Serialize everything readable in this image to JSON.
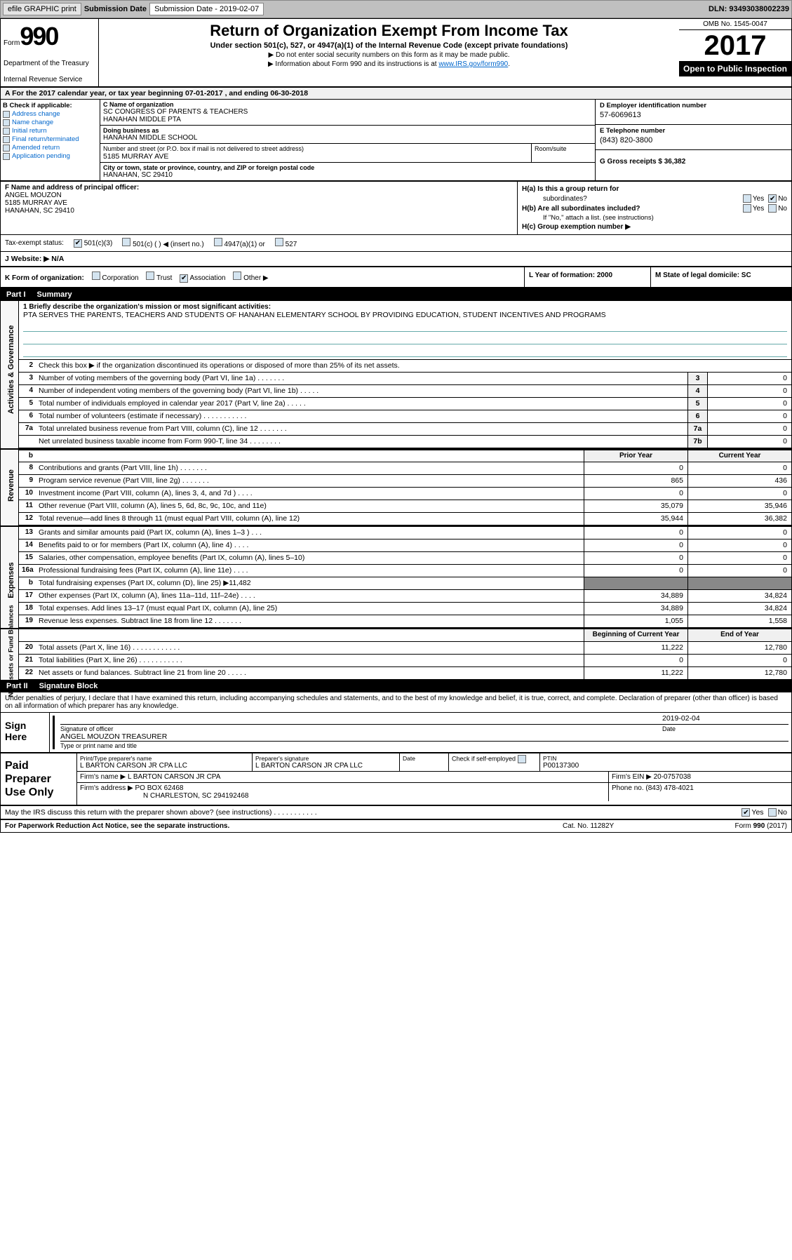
{
  "toolbar": {
    "efile_label": "efile GRAPHIC print",
    "submission_label": "Submission Date - 2019-02-07",
    "dln_label": "DLN: 93493038002239"
  },
  "header": {
    "form_prefix": "Form",
    "form_number": "990",
    "department": "Department of the Treasury",
    "irs": "Internal Revenue Service",
    "title": "Return of Organization Exempt From Income Tax",
    "subtitle": "Under section 501(c), 527, or 4947(a)(1) of the Internal Revenue Code (except private foundations)",
    "note1": "▶ Do not enter social security numbers on this form as it may be made public.",
    "note2_pre": "▶ Information about Form 990 and its instructions is at ",
    "note2_link": "www.IRS.gov/form990",
    "omb": "OMB No. 1545-0047",
    "year": "2017",
    "open_public": "Open to Public Inspection"
  },
  "period": "For the 2017 calendar year, or tax year beginning 07-01-2017    , and ending 06-30-2018",
  "section_b": {
    "header": "B Check if applicable:",
    "items": [
      "Address change",
      "Name change",
      "Initial return",
      "Final return/terminated",
      "Amended return",
      "Application pending"
    ]
  },
  "section_c": {
    "name_label": "C Name of organization",
    "name": "SC CONGRESS OF PARENTS & TEACHERS",
    "name2": "HANAHAN MIDDLE PTA",
    "dba_label": "Doing business as",
    "dba": "HANAHAN MIDDLE SCHOOL",
    "addr_label": "Number and street (or P.O. box if mail is not delivered to street address)",
    "addr": "5185 MURRAY AVE",
    "suite_label": "Room/suite",
    "city_label": "City or town, state or province, country, and ZIP or foreign postal code",
    "city": "HANAHAN, SC  29410"
  },
  "section_d": {
    "label": "D Employer identification number",
    "value": "57-6069613"
  },
  "section_e": {
    "label": "E Telephone number",
    "value": "(843) 820-3800"
  },
  "section_g": {
    "label": "G Gross receipts $ 36,382"
  },
  "section_f": {
    "label": "F  Name and address of principal officer:",
    "name": "ANGEL MOUZON",
    "addr": "5185 MURRAY AVE",
    "city": "HANAHAN, SC  29410"
  },
  "section_h": {
    "ha_label": "H(a)  Is this a group return for",
    "ha_label2": "subordinates?",
    "hb_label": "H(b)  Are all subordinates included?",
    "hb_note": "If \"No,\" attach a list. (see instructions)",
    "hc_label": "H(c)  Group exemption number ▶"
  },
  "tax_status": {
    "label": "Tax-exempt status:",
    "opt1": "501(c)(3)",
    "opt2": "501(c) (  ) ◀ (insert no.)",
    "opt3": "4947(a)(1) or",
    "opt4": "527"
  },
  "section_j": {
    "label": "J   Website: ▶",
    "value": "N/A"
  },
  "section_k": {
    "label": "K Form of organization:",
    "opts": [
      "Corporation",
      "Trust",
      "Association",
      "Other ▶"
    ]
  },
  "section_l": {
    "label": "L Year of formation: 2000"
  },
  "section_m": {
    "label": "M State of legal domicile: SC"
  },
  "part1": {
    "header_num": "Part I",
    "header_title": "Summary",
    "line1_label": "1  Briefly describe the organization's mission or most significant activities:",
    "mission": "PTA SERVES THE PARENTS, TEACHERS AND STUDENTS OF HANAHAN ELEMENTARY SCHOOL BY PROVIDING EDUCATION, STUDENT INCENTIVES AND PROGRAMS",
    "line2": "Check this box ▶        if the organization discontinued its operations or disposed of more than 25% of its net assets.",
    "sides": {
      "governance": "Activities & Governance",
      "revenue": "Revenue",
      "expenses": "Expenses",
      "netassets": "Net Assets or Fund Balances"
    },
    "col_prior": "Prior Year",
    "col_current": "Current Year",
    "col_begin": "Beginning of Current Year",
    "col_end": "End of Year",
    "lines_gov": [
      {
        "num": "3",
        "text": "Number of voting members of the governing body (Part VI, line 1a)   .   .   .   .   .   .   .",
        "box": "3",
        "val": "0"
      },
      {
        "num": "4",
        "text": "Number of independent voting members of the governing body (Part VI, line 1b)   .   .   .   .   .",
        "box": "4",
        "val": "0"
      },
      {
        "num": "5",
        "text": "Total number of individuals employed in calendar year 2017 (Part V, line 2a)   .   .   .   .   .",
        "box": "5",
        "val": "0"
      },
      {
        "num": "6",
        "text": "Total number of volunteers (estimate if necessary)   .   .   .   .   .   .   .   .   .   .   .",
        "box": "6",
        "val": "0"
      },
      {
        "num": "7a",
        "text": "Total unrelated business revenue from Part VIII, column (C), line 12   .   .   .   .   .   .   .",
        "box": "7a",
        "val": "0"
      },
      {
        "num": "",
        "text": "Net unrelated business taxable income from Form 990-T, line 34   .   .   .   .   .   .   .   .",
        "box": "7b",
        "val": "0"
      }
    ],
    "lines_rev": [
      {
        "num": "8",
        "text": "Contributions and grants (Part VIII, line 1h)   .   .   .   .   .   .   .",
        "prior": "0",
        "curr": "0"
      },
      {
        "num": "9",
        "text": "Program service revenue (Part VIII, line 2g)   .   .   .   .   .   .   .",
        "prior": "865",
        "curr": "436"
      },
      {
        "num": "10",
        "text": "Investment income (Part VIII, column (A), lines 3, 4, and 7d )   .   .   .   .",
        "prior": "0",
        "curr": "0"
      },
      {
        "num": "11",
        "text": "Other revenue (Part VIII, column (A), lines 5, 6d, 8c, 9c, 10c, and 11e)",
        "prior": "35,079",
        "curr": "35,946"
      },
      {
        "num": "12",
        "text": "Total revenue—add lines 8 through 11 (must equal Part VIII, column (A), line 12)",
        "prior": "35,944",
        "curr": "36,382"
      }
    ],
    "lines_exp": [
      {
        "num": "13",
        "text": "Grants and similar amounts paid (Part IX, column (A), lines 1–3 )   .   .   .",
        "prior": "0",
        "curr": "0"
      },
      {
        "num": "14",
        "text": "Benefits paid to or for members (Part IX, column (A), line 4)   .   .   .   .",
        "prior": "0",
        "curr": "0"
      },
      {
        "num": "15",
        "text": "Salaries, other compensation, employee benefits (Part IX, column (A), lines 5–10)",
        "prior": "0",
        "curr": "0"
      },
      {
        "num": "16a",
        "text": "Professional fundraising fees (Part IX, column (A), line 11e)   .   .   .   .",
        "prior": "0",
        "curr": "0"
      },
      {
        "num": "b",
        "text": "Total fundraising expenses (Part IX, column (D), line 25) ▶11,482",
        "prior": "",
        "curr": "",
        "dark": true
      },
      {
        "num": "17",
        "text": "Other expenses (Part IX, column (A), lines 11a–11d, 11f–24e)   .   .   .   .",
        "prior": "34,889",
        "curr": "34,824"
      },
      {
        "num": "18",
        "text": "Total expenses. Add lines 13–17 (must equal Part IX, column (A), line 25)",
        "prior": "34,889",
        "curr": "34,824"
      },
      {
        "num": "19",
        "text": "Revenue less expenses. Subtract line 18 from line 12   .   .   .   .   .   .   .",
        "prior": "1,055",
        "curr": "1,558"
      }
    ],
    "lines_net": [
      {
        "num": "20",
        "text": "Total assets (Part X, line 16)   .   .   .   .   .   .   .   .   .   .   .   .",
        "prior": "11,222",
        "curr": "12,780"
      },
      {
        "num": "21",
        "text": "Total liabilities (Part X, line 26)   .   .   .   .   .   .   .   .   .   .   .",
        "prior": "0",
        "curr": "0"
      },
      {
        "num": "22",
        "text": "Net assets or fund balances. Subtract line 21 from line 20   .   .   .   .   .",
        "prior": "11,222",
        "curr": "12,780"
      }
    ]
  },
  "part2": {
    "header_num": "Part II",
    "header_title": "Signature Block",
    "penalties": "Under penalties of perjury, I declare that I have examined this return, including accompanying schedules and statements, and to the best of my knowledge and belief, it is true, correct, and complete. Declaration of preparer (other than officer) is based on all information of which preparer has any knowledge."
  },
  "sign": {
    "label": "Sign Here",
    "sig_label": "Signature of officer",
    "date_label": "Date",
    "date": "2019-02-04",
    "name": "ANGEL MOUZON  TREASURER",
    "name_label": "Type or print name and title"
  },
  "preparer": {
    "label": "Paid Preparer Use Only",
    "name_label": "Print/Type preparer's name",
    "name": "L BARTON CARSON JR CPA LLC",
    "sig_label": "Preparer's signature",
    "sig": "L BARTON CARSON JR CPA LLC",
    "date_label": "Date",
    "self_emp": "Check         if self-employed",
    "ptin_label": "PTIN",
    "ptin": "P00137300",
    "firm_label": "Firm's name    ▶",
    "firm": "L BARTON CARSON JR CPA",
    "ein_label": "Firm's EIN ▶ 20-0757038",
    "addr_label": "Firm's address ▶",
    "addr": "PO BOX 62468",
    "addr2": "N CHARLESTON, SC  294192468",
    "phone_label": "Phone no. (843) 478-4021"
  },
  "discuss": "May the IRS discuss this return with the preparer shown above? (see instructions)   .   .   .   .   .   .   .   .   .   .   .",
  "footer": {
    "left": "For Paperwork Reduction Act Notice, see the separate instructions.",
    "mid": "Cat. No. 11282Y",
    "right": "Form 990 (2017)"
  },
  "yes": "Yes",
  "no": "No"
}
